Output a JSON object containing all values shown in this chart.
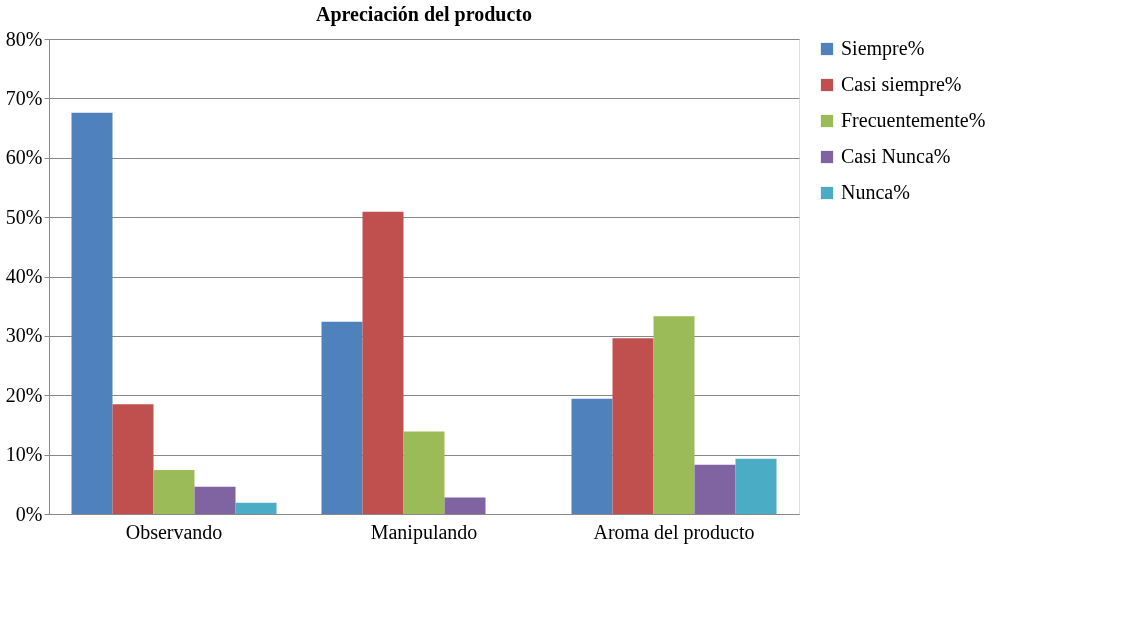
{
  "chart_data": {
    "type": "bar",
    "title": "Apreciación del producto",
    "categories": [
      "Observando",
      "Manipulando",
      "Aroma del producto"
    ],
    "series": [
      {
        "name": "Siempre%",
        "color": "#4f81bd",
        "values": [
          67.6,
          32.4,
          19.4
        ]
      },
      {
        "name": "Casi siempre%",
        "color": "#c0504d",
        "values": [
          18.5,
          50.9,
          29.6
        ]
      },
      {
        "name": "Frecuentemente%",
        "color": "#9bbb59",
        "values": [
          7.4,
          13.9,
          33.3
        ]
      },
      {
        "name": "Casi Nunca%",
        "color": "#8064a2",
        "values": [
          4.6,
          2.8,
          8.3
        ]
      },
      {
        "name": "Nunca%",
        "color": "#4bacc6",
        "values": [
          1.9,
          0,
          9.3
        ]
      }
    ],
    "ylim": [
      0,
      80
    ],
    "yticks": [
      {
        "value": 0,
        "label": "0%"
      },
      {
        "value": 10,
        "label": "10%"
      },
      {
        "value": 20,
        "label": "20%"
      },
      {
        "value": 30,
        "label": "30%"
      },
      {
        "value": 40,
        "label": "40%"
      },
      {
        "value": 50,
        "label": "50%"
      },
      {
        "value": 60,
        "label": "60%"
      },
      {
        "value": 70,
        "label": "70%"
      },
      {
        "value": 80,
        "label": "80%"
      }
    ],
    "grid": "y",
    "legend": "right"
  }
}
